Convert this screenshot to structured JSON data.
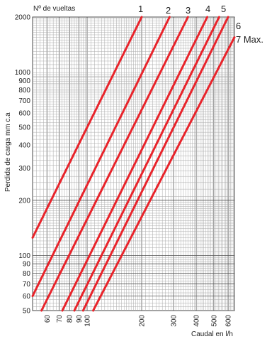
{
  "chart_data": {
    "type": "line",
    "title": "",
    "ylabel": "Perdida de carga mm c.a",
    "xlabel": "Caudal en l/h",
    "corner_label": "Nº de vueltas",
    "x_scale": "log",
    "y_scale": "log",
    "xlim": [
      50,
      650
    ],
    "ylim": [
      50,
      2000
    ],
    "grid": true,
    "x_ticks": [
      "60",
      "70",
      "80",
      "90",
      "100",
      "200",
      "300",
      "400",
      "500",
      "600"
    ],
    "y_ticks": [
      "50",
      "60",
      "70",
      "80",
      "90",
      "100",
      "200",
      "300",
      "400",
      "500",
      "600",
      "700",
      "800",
      "900",
      "1000",
      "2000"
    ],
    "series_color": "#e8242b",
    "series": [
      {
        "name": "1",
        "x": [
          50,
          200
        ],
        "y": [
          125,
          2000
        ]
      },
      {
        "name": "2",
        "x": [
          50,
          285
        ],
        "y": [
          60,
          2000
        ]
      },
      {
        "name": "3",
        "x": [
          56,
          360
        ],
        "y": [
          50,
          2000
        ]
      },
      {
        "name": "4",
        "x": [
          73,
          460
        ],
        "y": [
          50,
          2000
        ]
      },
      {
        "name": "5",
        "x": [
          85,
          535
        ],
        "y": [
          50,
          2000
        ]
      },
      {
        "name": "6",
        "x": [
          95,
          600
        ],
        "y": [
          50,
          2000
        ]
      },
      {
        "name": "7 Max.",
        "x": [
          108,
          650
        ],
        "y": [
          50,
          1550
        ]
      }
    ]
  }
}
